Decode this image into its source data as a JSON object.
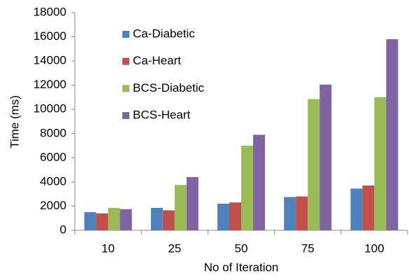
{
  "chart_data": {
    "type": "bar",
    "x_label": "No of Iteration",
    "y_label": "Time (ms)",
    "categories": [
      "10",
      "25",
      "50",
      "75",
      "100"
    ],
    "series": [
      {
        "name": "Ca-Diabetic",
        "color": "#4f81bd",
        "values": [
          1500,
          1850,
          2200,
          2750,
          3450
        ]
      },
      {
        "name": "Ca-Heart",
        "color": "#c0504d",
        "values": [
          1400,
          1650,
          2300,
          2800,
          3700
        ]
      },
      {
        "name": "BCS-Diabetic",
        "color": "#9bbb59",
        "values": [
          1850,
          3750,
          7000,
          10850,
          11000
        ]
      },
      {
        "name": "BCS-Heart",
        "color": "#8064a2",
        "values": [
          1750,
          4400,
          7900,
          12050,
          15800
        ]
      }
    ],
    "ylim": [
      0,
      18000
    ],
    "yticks": [
      0,
      2000,
      4000,
      6000,
      8000,
      10000,
      12000,
      14000,
      16000,
      18000
    ],
    "grid": false,
    "legend": "top-left"
  }
}
